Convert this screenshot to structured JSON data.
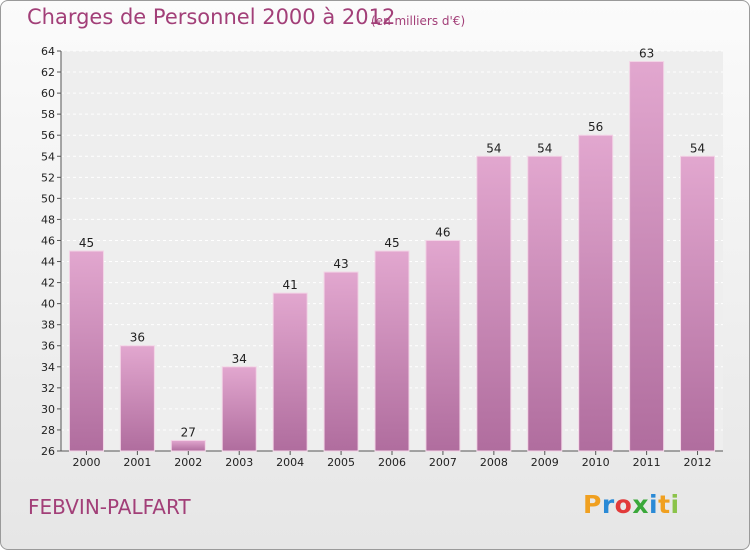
{
  "title": "Charges de Personnel 2000 à 2012",
  "subtitle": "(en milliers d'€)",
  "commune": "FEBVIN-PALFART",
  "logo": [
    "P",
    "r",
    "o",
    "x",
    "i",
    "t",
    "i"
  ],
  "colors": {
    "bar_top": "#e2a7cf",
    "bar_bottom": "#b06d9e",
    "title": "#a23f78"
  },
  "chart_data": {
    "type": "bar",
    "categories": [
      "2000",
      "2001",
      "2002",
      "2003",
      "2004",
      "2005",
      "2006",
      "2007",
      "2008",
      "2009",
      "2010",
      "2011",
      "2012"
    ],
    "values": [
      45,
      36,
      27,
      34,
      41,
      43,
      45,
      46,
      54,
      54,
      56,
      63,
      54
    ],
    "ylim": [
      26,
      64
    ],
    "yticks": [
      26,
      28,
      30,
      32,
      34,
      36,
      38,
      40,
      42,
      44,
      46,
      48,
      50,
      52,
      54,
      56,
      58,
      60,
      62,
      64
    ],
    "grid": true,
    "xlabel": "",
    "ylabel": ""
  }
}
